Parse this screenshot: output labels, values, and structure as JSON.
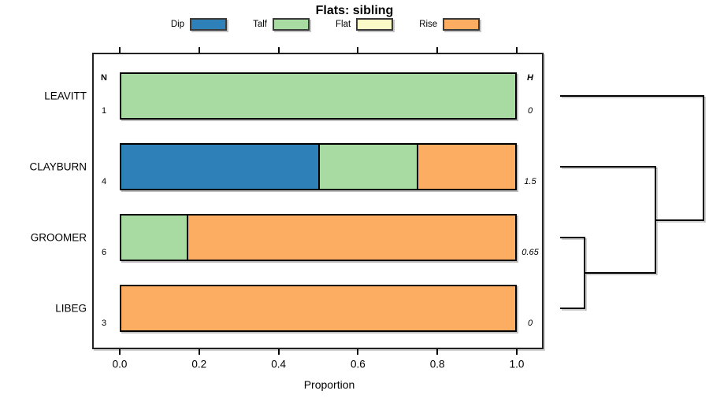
{
  "title": "Flats: sibling",
  "legend": [
    {
      "label": "Dip",
      "color": "#2E80B9"
    },
    {
      "label": "Talf",
      "color": "#A7DBA2"
    },
    {
      "label": "Flat",
      "color": "#FAFAC8"
    },
    {
      "label": "Rise",
      "color": "#FCAD62"
    }
  ],
  "table": {
    "n_header": "N",
    "h_header": "H"
  },
  "x_axis": {
    "label": "Proportion",
    "ticks": [
      "0.0",
      "0.2",
      "0.4",
      "0.6",
      "0.8",
      "1.0"
    ]
  },
  "rows": [
    {
      "name": "LEAVITT",
      "n": "1",
      "h": "0",
      "segments": [
        {
          "state": "Talf",
          "value": 1
        }
      ]
    },
    {
      "name": "CLAYBURN",
      "n": "4",
      "h": "1.5",
      "segments": [
        {
          "state": "Dip",
          "value": 0.5
        },
        {
          "state": "Talf",
          "value": 0.25
        },
        {
          "state": "Rise",
          "value": 0.25
        }
      ]
    },
    {
      "name": "GROOMER",
      "n": "6",
      "h": "0.65",
      "segments": [
        {
          "state": "Talf",
          "value": 0.1667
        },
        {
          "state": "Rise",
          "value": 0.8333
        }
      ]
    },
    {
      "name": "LIBEG",
      "n": "3",
      "h": "0",
      "segments": [
        {
          "state": "Rise",
          "value": 1
        }
      ]
    }
  ],
  "chart_data": {
    "type": "bar",
    "subtype": "horizontal_stacked_proportion_with_dendrogram",
    "title": "Flats: sibling",
    "xlabel": "Proportion",
    "xlim": [
      0,
      1
    ],
    "x_ticks": [
      0,
      0.2,
      0.4,
      0.6,
      0.8,
      1.0
    ],
    "grid": false,
    "legend_position": "top",
    "categories": [
      "LEAVITT",
      "CLAYBURN",
      "GROOMER",
      "LIBEG"
    ],
    "series": [
      {
        "name": "Dip",
        "color": "#2E80B9",
        "values": [
          0,
          0.5,
          0,
          0
        ]
      },
      {
        "name": "Talf",
        "color": "#A7DBA2",
        "values": [
          1,
          0.25,
          0.1667,
          0
        ]
      },
      {
        "name": "Flat",
        "color": "#FAFAC8",
        "values": [
          0,
          0,
          0,
          0
        ]
      },
      {
        "name": "Rise",
        "color": "#FCAD62",
        "values": [
          0,
          0.25,
          0.8333,
          1
        ]
      }
    ],
    "n_values": [
      1,
      4,
      6,
      3
    ],
    "h_values": [
      0,
      1.5,
      0.65,
      0
    ],
    "dendrogram": {
      "orientation": "right",
      "merges": [
        {
          "members": [
            "GROOMER",
            "LIBEG"
          ],
          "height": 0.65
        },
        {
          "members": [
            "CLAYBURN",
            "merge0"
          ],
          "height": 1.5
        },
        {
          "members": [
            "LEAVITT",
            "merge1"
          ],
          "height": null
        }
      ]
    }
  }
}
